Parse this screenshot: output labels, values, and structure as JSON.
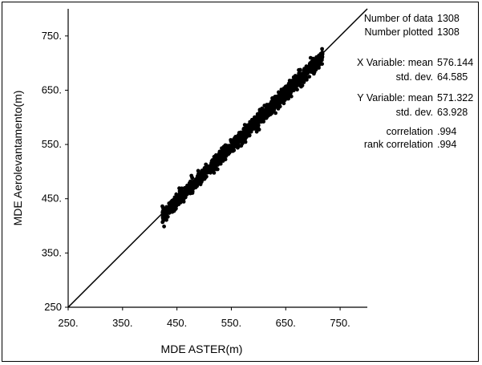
{
  "chart_data": {
    "type": "scatter",
    "xlabel": "MDE ASTER(m)",
    "ylabel": "MDE Aerolevantamento(m)",
    "xlim": [
      250,
      800
    ],
    "ylim": [
      250,
      800
    ],
    "x_ticks": [
      250,
      350,
      450,
      550,
      650,
      750
    ],
    "x_tick_labels": [
      "250.",
      "350.",
      "450.",
      "550.",
      "650.",
      "750."
    ],
    "y_ticks": [
      250,
      350,
      450,
      550,
      650,
      750
    ],
    "y_tick_labels": [
      "250",
      "350.",
      "450.",
      "550.",
      "650.",
      "750."
    ],
    "reference_line": "1:1",
    "grid": false,
    "point_color": "#000000",
    "points_count": 1308,
    "stats": [
      {
        "label": "Number of data",
        "value": "1308"
      },
      {
        "label": "Number plotted",
        "value": "1308"
      },
      {
        "label": "X Variable: mean",
        "value": "576.144"
      },
      {
        "label": "std. dev.",
        "value": "64.585"
      },
      {
        "label": "Y Variable: mean",
        "value": "571.322"
      },
      {
        "label": "std. dev.",
        "value": "63.928"
      },
      {
        "label": "correlation",
        "value": ".994"
      },
      {
        "label": "rank correlation",
        "value": ".994"
      }
    ]
  }
}
